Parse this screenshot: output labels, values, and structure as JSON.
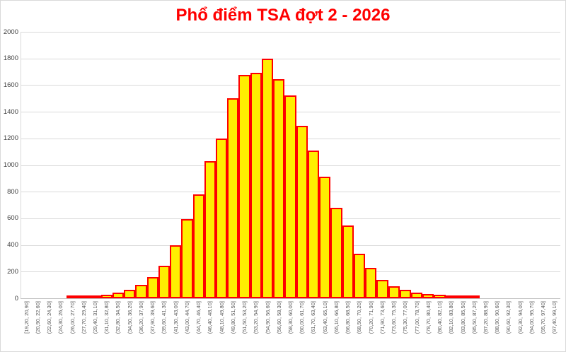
{
  "title": "Phổ điểm TSA đợt 2 - 2026",
  "title_color": "#ff0000",
  "chart_data": {
    "type": "bar",
    "subtype": "histogram",
    "title": "Phổ điểm TSA đợt 2 - 2026",
    "xlabel": "",
    "ylabel": "",
    "legend": false,
    "grid": true,
    "ylim": [
      0,
      2000
    ],
    "yticks": [
      0,
      200,
      400,
      600,
      800,
      1000,
      1200,
      1400,
      1600,
      1800,
      2000
    ],
    "bar_fill_color": "#ffee00",
    "bar_border_color": "#fe0000",
    "gridline_color": "#d9d9d9",
    "axis_label_color": "#595959",
    "categories": [
      "[19,20, 20,90]",
      "(20,90, 22,60]",
      "(22,60, 24,30]",
      "(24,30, 26,00]",
      "(26,00, 27,70]",
      "(27,70, 29,40]",
      "(29,40, 31,10]",
      "(31,10, 32,80]",
      "(32,80, 34,50]",
      "(34,50, 36,20]",
      "(36,20, 37,90]",
      "(37,90, 39,60]",
      "(39,60, 41,30]",
      "(41,30, 43,00]",
      "(43,00, 44,70]",
      "(44,70, 46,40]",
      "(46,40, 48,10]",
      "(48,10, 49,80]",
      "(49,80, 51,50]",
      "(51,50, 53,20]",
      "(53,20, 54,90]",
      "(54,90, 56,60]",
      "(56,60, 58,30]",
      "(58,30, 60,00]",
      "(60,00, 61,70]",
      "(61,70, 63,40]",
      "(63,40, 65,10]",
      "(65,10, 66,80]",
      "(66,80, 68,50]",
      "(68,50, 70,20]",
      "(70,20, 71,90]",
      "(71,90, 73,60]",
      "(73,60, 75,30]",
      "(75,30, 77,00]",
      "(77,00, 78,70]",
      "(78,70, 80,40]",
      "(80,40, 82,10]",
      "(82,10, 83,80]",
      "(83,80, 85,50]",
      "(85,50, 87,20]",
      "(87,20, 88,90]",
      "(88,90, 90,60]",
      "(90,60, 92,30]",
      "(92,30, 94,00]",
      "(94,00, 95,70]",
      "(95,70, 97,40]",
      "(97,40, 99,10]"
    ],
    "values": [
      0,
      0,
      0,
      0,
      8,
      12,
      18,
      28,
      40,
      62,
      100,
      160,
      245,
      400,
      595,
      780,
      1030,
      1200,
      1500,
      1675,
      1690,
      1800,
      1645,
      1520,
      1295,
      1110,
      910,
      680,
      545,
      335,
      230,
      140,
      92,
      65,
      43,
      34,
      25,
      22,
      15,
      10,
      0,
      0,
      0,
      0,
      0,
      0,
      0
    ]
  }
}
